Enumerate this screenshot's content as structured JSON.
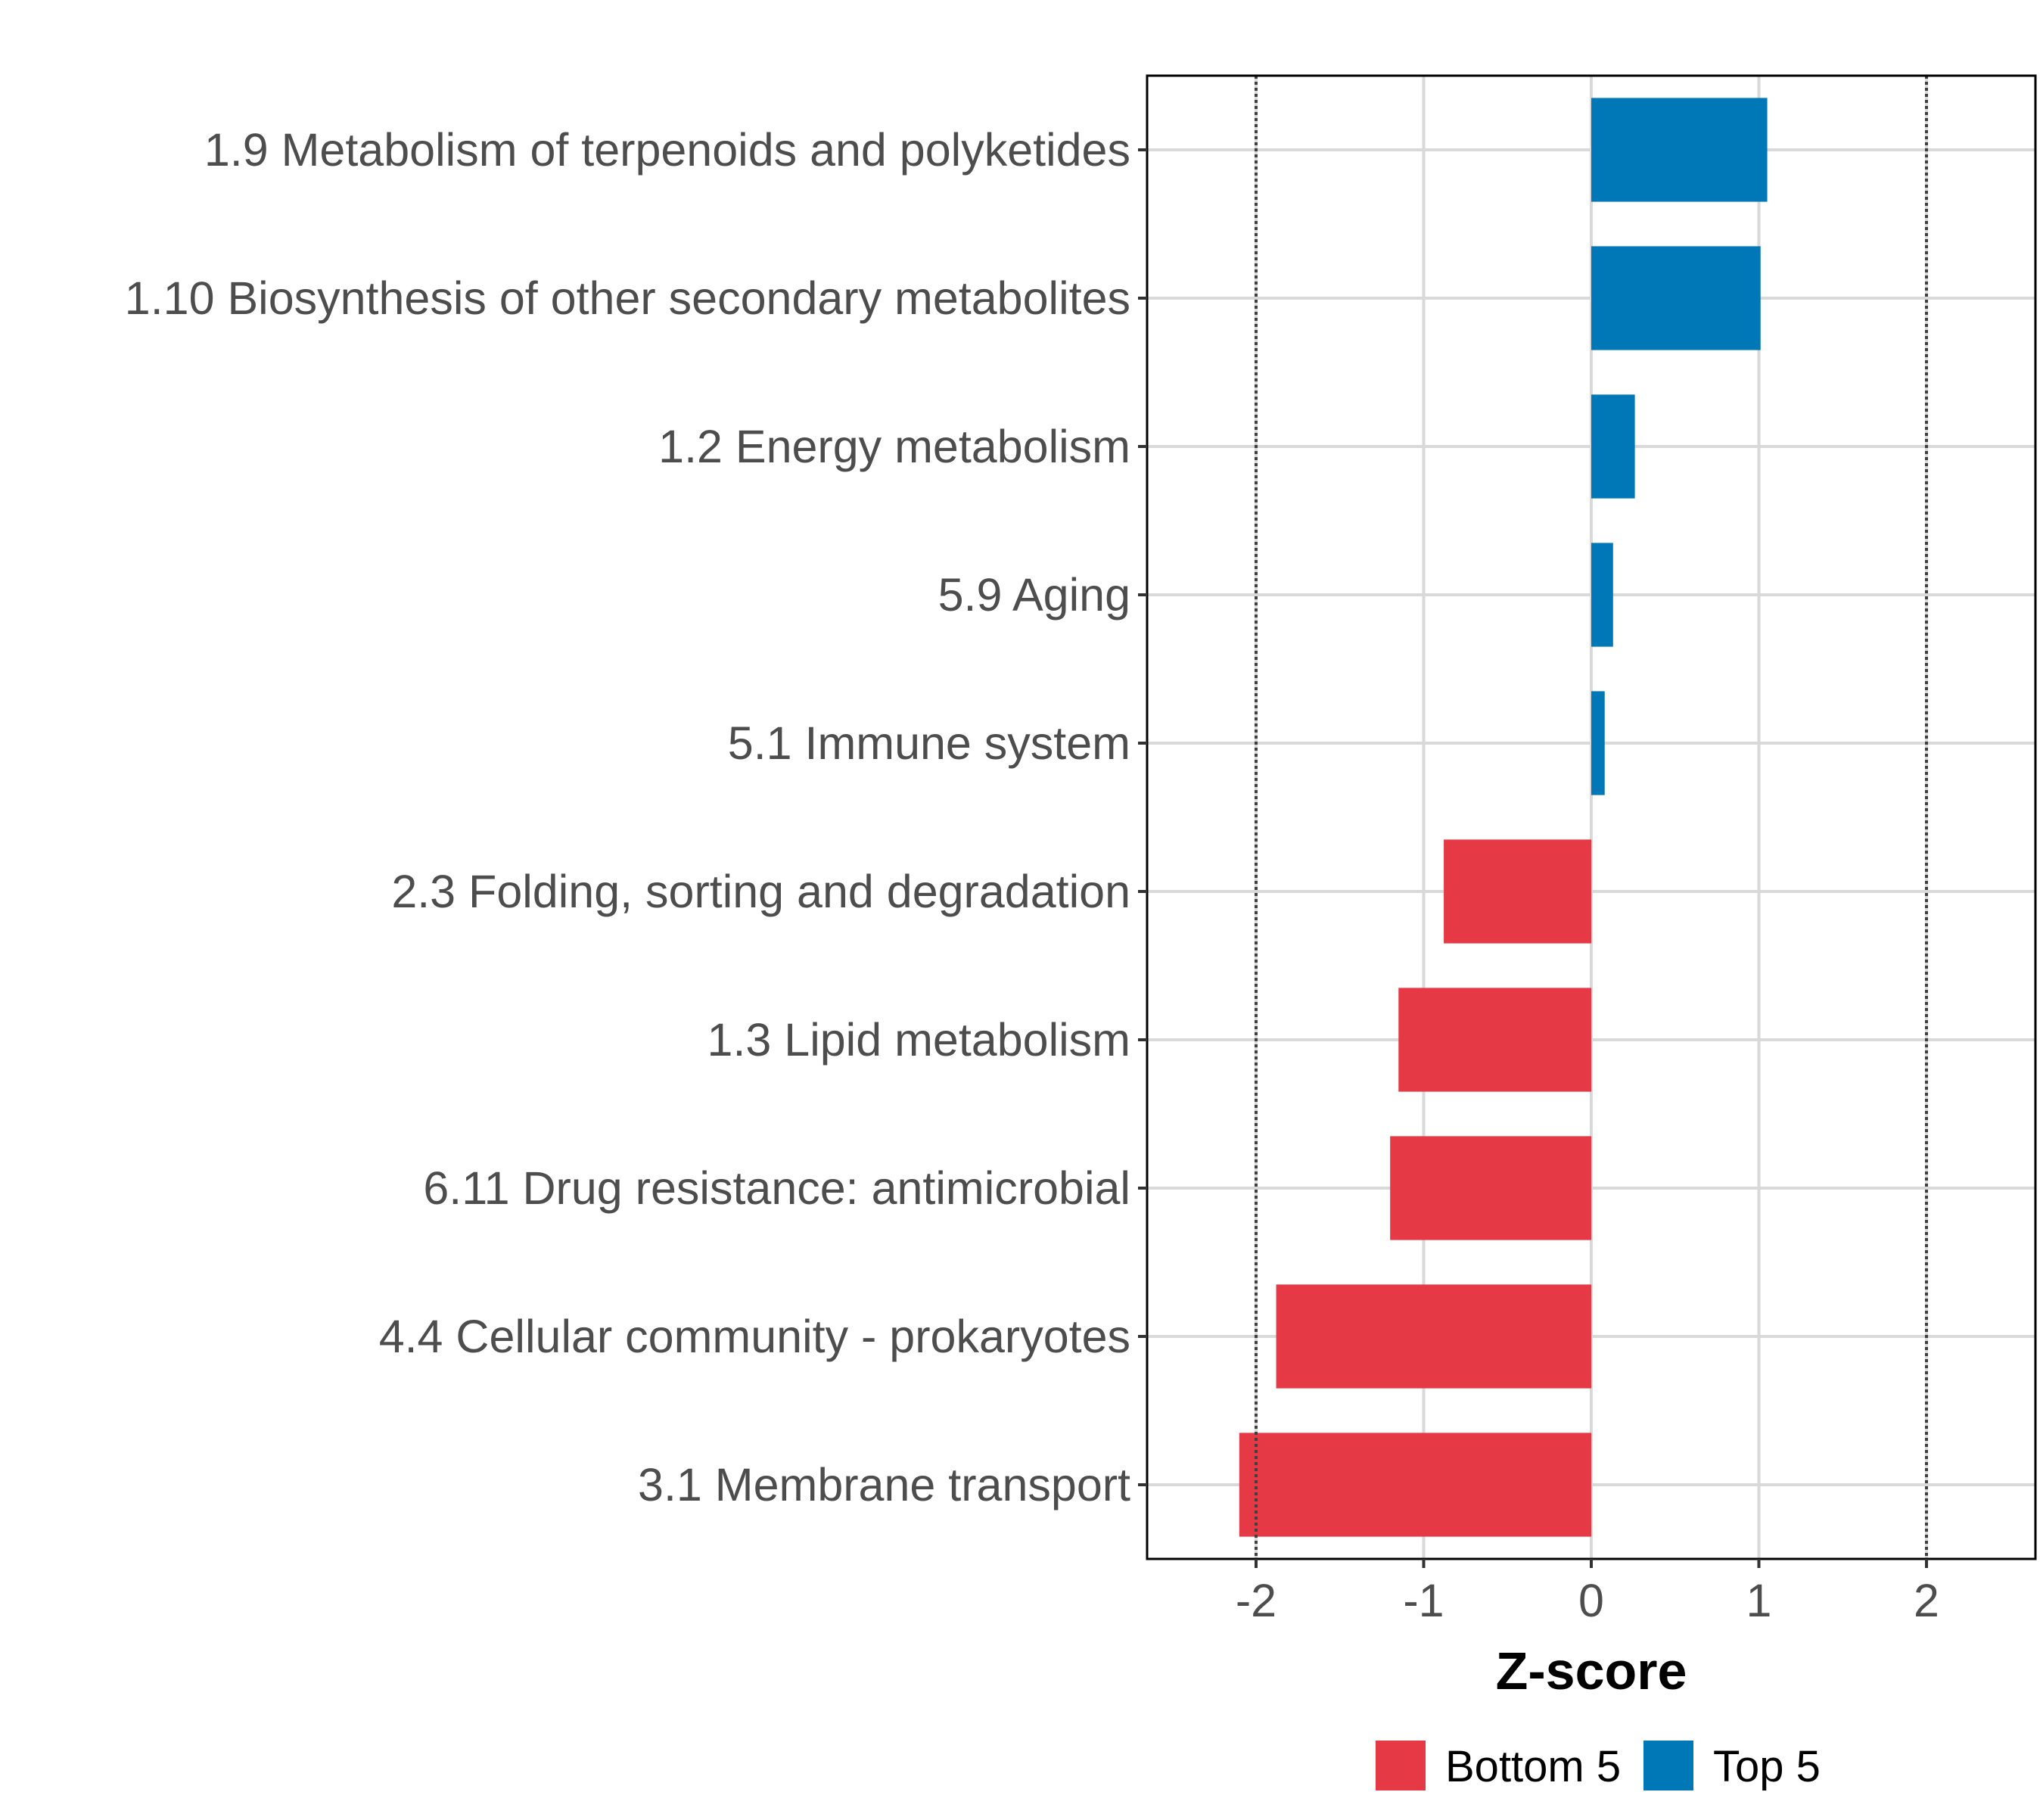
{
  "chart_data": {
    "type": "bar",
    "orientation": "horizontal",
    "title": "",
    "xlabel": "Z-score",
    "ylabel": "",
    "xlim": [
      -2.65,
      2.65
    ],
    "xticks": [
      -2,
      -1,
      0,
      1,
      2
    ],
    "xtick_labels": [
      "-2",
      "-1",
      "0",
      "1",
      "2"
    ],
    "reference_lines": [
      -2,
      2
    ],
    "grid": true,
    "legend_position": "bottom",
    "categories": [
      "1.9 Metabolism of terpenoids and polyketides",
      "1.10 Biosynthesis of other secondary metabolites",
      "1.2 Energy metabolism",
      "5.9 Aging",
      "5.1 Immune system",
      "2.3 Folding, sorting and degradation",
      "1.3 Lipid metabolism",
      "6.11 Drug resistance: antimicrobial",
      "4.4 Cellular community - prokaryotes",
      "3.1 Membrane transport"
    ],
    "values": [
      1.05,
      1.01,
      0.26,
      0.13,
      0.08,
      -0.88,
      -1.15,
      -1.2,
      -1.88,
      -2.1
    ],
    "groups": [
      "Top 5",
      "Top 5",
      "Top 5",
      "Top 5",
      "Top 5",
      "Bottom 5",
      "Bottom 5",
      "Bottom 5",
      "Bottom 5",
      "Bottom 5"
    ],
    "legend": [
      {
        "name": "Bottom 5",
        "color": "#e63946"
      },
      {
        "name": "Top 5",
        "color": "#0077b6"
      }
    ]
  }
}
